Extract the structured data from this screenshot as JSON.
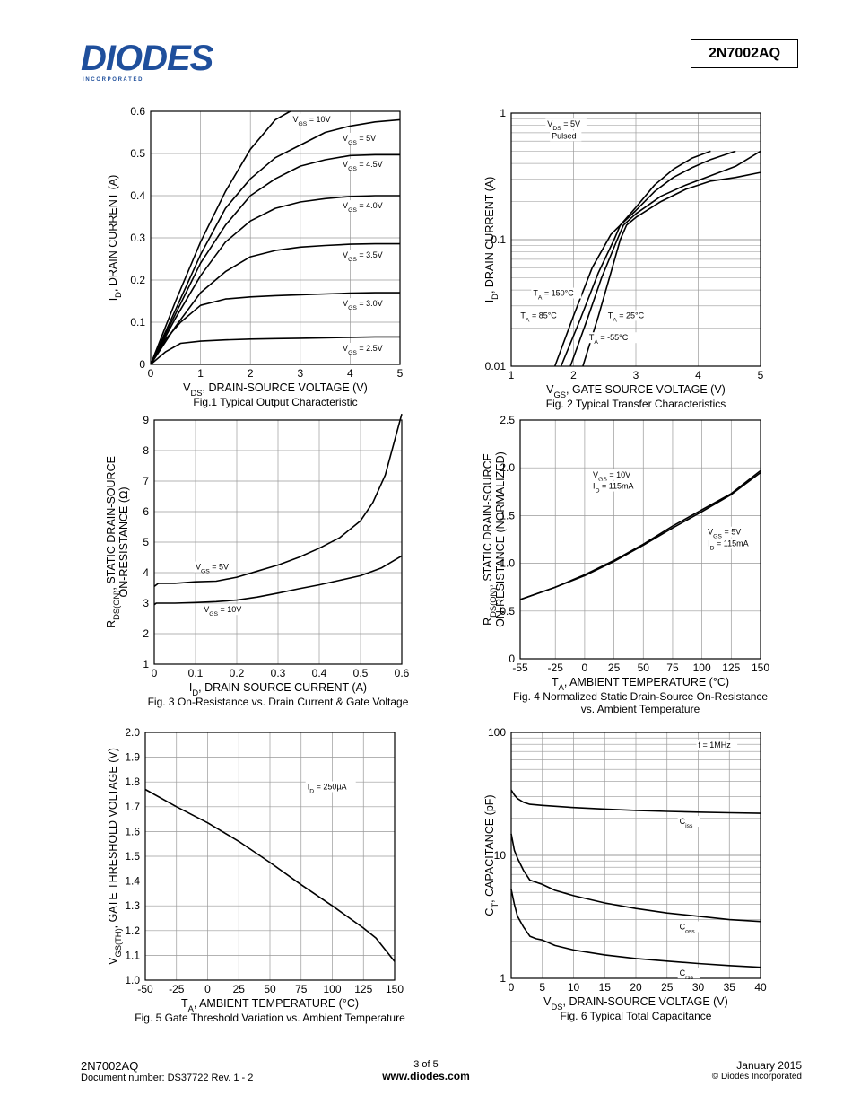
{
  "header": {
    "logo_text": "DIODES",
    "logo_sub": "I N C O R P O R A T E D",
    "part_number": "2N7002AQ",
    "brand_color": "#1f4f9c"
  },
  "footer": {
    "part": "2N7002AQ",
    "doc": "Document number: DS37722 Rev. 1 - 2",
    "page": "3 of 5",
    "url": "www.diodes.com",
    "date": "January 2015",
    "copyright": "© Diodes Incorporated"
  },
  "chart_data": [
    {
      "id": "fig1",
      "type": "line",
      "title": "Fig.1 Typical Output Characteristic",
      "xlabel": "VDS, DRAIN-SOURCE VOLTAGE (V)",
      "ylabel": "ID, DRAIN CURRENT (A)",
      "xlim": [
        0,
        5
      ],
      "ylim": [
        0,
        0.6
      ],
      "xscale": "linear",
      "yscale": "linear",
      "xticks": [
        0,
        1,
        2,
        3,
        4,
        5
      ],
      "yticks": [
        0,
        0.1,
        0.2,
        0.3,
        0.4,
        0.5,
        0.6
      ],
      "xtick_labels": [
        "0",
        "1",
        "2",
        "3",
        "4",
        "5"
      ],
      "ytick_labels": [
        "0",
        "0.1",
        "0.2",
        "0.3",
        "0.4",
        "0.5",
        "0.6"
      ],
      "series": [
        {
          "name": "VGS = 10V",
          "x": [
            0,
            0.5,
            1,
            1.5,
            2,
            2.5,
            2.8
          ],
          "y": [
            0,
            0.15,
            0.29,
            0.41,
            0.51,
            0.58,
            0.6
          ]
        },
        {
          "name": "VGS = 5V",
          "x": [
            0,
            0.5,
            1,
            1.5,
            2,
            2.5,
            3,
            3.5,
            4,
            4.5,
            5
          ],
          "y": [
            0,
            0.13,
            0.26,
            0.37,
            0.44,
            0.49,
            0.52,
            0.55,
            0.565,
            0.575,
            0.58
          ]
        },
        {
          "name": "VGS = 4.5V",
          "x": [
            0,
            0.5,
            1,
            1.5,
            2,
            2.5,
            3,
            3.5,
            4,
            4.5,
            5
          ],
          "y": [
            0,
            0.12,
            0.24,
            0.33,
            0.4,
            0.44,
            0.47,
            0.485,
            0.495,
            0.497,
            0.497
          ]
        },
        {
          "name": "VGS = 4.0V",
          "x": [
            0,
            0.5,
            1,
            1.5,
            2,
            2.5,
            3,
            3.5,
            4,
            4.5,
            5
          ],
          "y": [
            0,
            0.11,
            0.21,
            0.29,
            0.34,
            0.37,
            0.385,
            0.393,
            0.398,
            0.4,
            0.4
          ]
        },
        {
          "name": "VGS = 3.5V",
          "x": [
            0,
            0.5,
            1,
            1.5,
            2,
            2.5,
            3,
            3.5,
            4,
            4.5,
            5
          ],
          "y": [
            0,
            0.09,
            0.17,
            0.22,
            0.255,
            0.27,
            0.278,
            0.282,
            0.285,
            0.286,
            0.286
          ]
        },
        {
          "name": "VGS = 3.0V",
          "x": [
            0,
            0.3,
            0.6,
            1,
            1.5,
            2,
            2.5,
            3,
            3.5,
            4,
            4.5,
            5
          ],
          "y": [
            0,
            0.06,
            0.1,
            0.14,
            0.155,
            0.16,
            0.163,
            0.165,
            0.167,
            0.169,
            0.17,
            0.17
          ]
        },
        {
          "name": "VGS = 2.5V",
          "x": [
            0,
            0.3,
            0.6,
            1,
            1.5,
            2,
            2.5,
            3,
            3.5,
            4,
            4.5,
            5
          ],
          "y": [
            0,
            0.03,
            0.05,
            0.055,
            0.058,
            0.06,
            0.061,
            0.062,
            0.063,
            0.064,
            0.065,
            0.065
          ]
        }
      ],
      "labels": [
        {
          "text": "VGS = 10V",
          "x": 2.85,
          "y": 0.575
        },
        {
          "text": "VGS = 5V",
          "x": 3.85,
          "y": 0.53
        },
        {
          "text": "VGS = 4.5V",
          "x": 3.85,
          "y": 0.468
        },
        {
          "text": "VGS = 4.0V",
          "x": 3.85,
          "y": 0.37
        },
        {
          "text": "VGS = 3.5V",
          "x": 3.85,
          "y": 0.253
        },
        {
          "text": "VGS = 3.0V",
          "x": 3.85,
          "y": 0.138
        },
        {
          "text": "VGS = 2.5V",
          "x": 3.85,
          "y": 0.032
        }
      ]
    },
    {
      "id": "fig2",
      "type": "line",
      "title": "Fig. 2 Typical Transfer Characteristics",
      "xlabel": "VGS, GATE SOURCE VOLTAGE (V)",
      "ylabel": "ID, DRAIN CURRENT (A)",
      "xlim": [
        1,
        5
      ],
      "ylim": [
        0.01,
        1
      ],
      "xscale": "linear",
      "yscale": "log",
      "xticks": [
        1,
        2,
        3,
        4,
        5
      ],
      "yticks": [
        0.01,
        0.1,
        1
      ],
      "xtick_labels": [
        "1",
        "2",
        "3",
        "4",
        "5"
      ],
      "ytick_labels": [
        "0.01",
        "0.1",
        "1"
      ],
      "series": [
        {
          "name": "TA = 150°C",
          "x": [
            1.7,
            2.0,
            2.3,
            2.6,
            2.75,
            3.0,
            3.3,
            3.6,
            3.9,
            4.2
          ],
          "y": [
            0.01,
            0.025,
            0.06,
            0.11,
            0.13,
            0.18,
            0.27,
            0.36,
            0.44,
            0.5
          ]
        },
        {
          "name": "TA = 85°C",
          "x": [
            1.8,
            2.1,
            2.4,
            2.65,
            2.75,
            3.0,
            3.3,
            3.6,
            3.9,
            4.2,
            4.6
          ],
          "y": [
            0.01,
            0.023,
            0.055,
            0.1,
            0.13,
            0.17,
            0.24,
            0.31,
            0.37,
            0.43,
            0.5
          ]
        },
        {
          "name": "TA = 25°C",
          "x": [
            1.95,
            2.2,
            2.45,
            2.7,
            2.8,
            3.0,
            3.4,
            3.8,
            4.2,
            4.6,
            5.0
          ],
          "y": [
            0.01,
            0.022,
            0.05,
            0.1,
            0.13,
            0.16,
            0.22,
            0.27,
            0.32,
            0.38,
            0.5
          ]
        },
        {
          "name": "TA = -55°C",
          "x": [
            2.15,
            2.4,
            2.6,
            2.75,
            2.85,
            3.0,
            3.4,
            3.8,
            4.2,
            4.6,
            5.0
          ],
          "y": [
            0.01,
            0.025,
            0.055,
            0.1,
            0.13,
            0.15,
            0.2,
            0.25,
            0.29,
            0.31,
            0.34
          ]
        }
      ],
      "labels": [
        {
          "text": "VDS = 5V",
          "x": 1.58,
          "y": 0.78
        },
        {
          "text": "Pulsed",
          "x": 1.65,
          "y": 0.63
        },
        {
          "text": "TA = 150°C",
          "x": 1.35,
          "y": 0.036
        },
        {
          "text": "TA = 85°C",
          "x": 1.15,
          "y": 0.024
        },
        {
          "text": "TA = 25°C",
          "x": 2.55,
          "y": 0.024
        },
        {
          "text": "TA = -55°C",
          "x": 2.25,
          "y": 0.016
        }
      ]
    },
    {
      "id": "fig3",
      "type": "line",
      "title": "Fig. 3  On-Resistance  vs. Drain Current & Gate Voltage",
      "xlabel": "ID, DRAIN-SOURCE CURRENT (A)",
      "ylabel": "RDS(ON), STATIC DRAIN-SOURCE ON-RESISTANCE (Ω)",
      "xlim": [
        0,
        0.6
      ],
      "ylim": [
        1,
        9
      ],
      "xscale": "linear",
      "yscale": "linear",
      "xticks": [
        0,
        0.1,
        0.2,
        0.3,
        0.4,
        0.5,
        0.6
      ],
      "yticks": [
        1,
        2,
        3,
        4,
        5,
        6,
        7,
        8,
        9
      ],
      "xtick_labels": [
        "0",
        "0.1",
        "0.2",
        "0.3",
        "0.4",
        "0.5",
        "0.6"
      ],
      "ytick_labels": [
        "1",
        "2",
        "3",
        "4",
        "5",
        "6",
        "7",
        "8",
        "9"
      ],
      "series": [
        {
          "name": "VGS = 5V",
          "x": [
            0,
            0.005,
            0.01,
            0.05,
            0.1,
            0.15,
            0.2,
            0.25,
            0.3,
            0.35,
            0.4,
            0.45,
            0.5,
            0.53,
            0.56,
            0.58,
            0.6
          ],
          "y": [
            3.55,
            3.6,
            3.65,
            3.65,
            3.7,
            3.72,
            3.85,
            4.05,
            4.25,
            4.5,
            4.8,
            5.15,
            5.7,
            6.3,
            7.2,
            8.2,
            9.2
          ]
        },
        {
          "name": "VGS = 10V",
          "x": [
            0,
            0.005,
            0.01,
            0.05,
            0.1,
            0.15,
            0.2,
            0.25,
            0.3,
            0.35,
            0.4,
            0.45,
            0.5,
            0.55,
            0.6
          ],
          "y": [
            2.95,
            3.0,
            3.0,
            3.0,
            3.02,
            3.05,
            3.1,
            3.2,
            3.33,
            3.47,
            3.6,
            3.75,
            3.9,
            4.15,
            4.55
          ]
        }
      ],
      "labels": [
        {
          "text": "VGS = 5V",
          "x": 0.1,
          "y": 4.1
        },
        {
          "text": "VGS = 10V",
          "x": 0.12,
          "y": 2.7
        }
      ]
    },
    {
      "id": "fig4",
      "type": "line",
      "title": "Fig. 4 Normalized Static Drain-Source On-Resistance",
      "title2": "vs. Ambient Temperature",
      "xlabel": "TA, AMBIENT TEMPERATURE (°C)",
      "ylabel": "RDS(ON), STATIC DRAIN-SOURCE ON-RESISTANCE (NORMALIZED)",
      "xlim": [
        -55,
        150
      ],
      "ylim": [
        0,
        2.5
      ],
      "xscale": "linear",
      "yscale": "linear",
      "xticks": [
        -55,
        -25,
        0,
        25,
        50,
        75,
        100,
        125,
        150
      ],
      "yticks": [
        0,
        0.5,
        1.0,
        1.5,
        2.0,
        2.5
      ],
      "xtick_labels": [
        "-55",
        "-25",
        "0",
        "25",
        "50",
        "75",
        "100",
        "125",
        "150"
      ],
      "ytick_labels": [
        "0",
        "0.5",
        "1.0",
        "1.5",
        "2.0",
        "2.5"
      ],
      "series": [
        {
          "name": "VGS = 10V, ID = 115mA",
          "x": [
            -55,
            -25,
            0,
            25,
            50,
            75,
            100,
            125,
            150
          ],
          "y": [
            0.62,
            0.75,
            0.88,
            1.03,
            1.2,
            1.39,
            1.56,
            1.73,
            1.97
          ]
        },
        {
          "name": "VGS = 5V, ID = 115mA",
          "x": [
            -55,
            -25,
            0,
            25,
            50,
            75,
            100,
            125,
            150
          ],
          "y": [
            0.62,
            0.75,
            0.87,
            1.02,
            1.19,
            1.37,
            1.54,
            1.72,
            1.95
          ]
        }
      ],
      "labels": [
        {
          "text": "VGS = 10V",
          "x": 7,
          "y": 1.9
        },
        {
          "text": "ID = 115mA",
          "x": 7,
          "y": 1.78
        },
        {
          "text": "VGS = 5V",
          "x": 105,
          "y": 1.3
        },
        {
          "text": "ID = 115mA",
          "x": 105,
          "y": 1.18
        }
      ]
    },
    {
      "id": "fig5",
      "type": "line",
      "title": "Fig. 5 Gate Threshold Variation vs. Ambient Temperature",
      "xlabel": "TA, AMBIENT TEMPERATURE (°C)",
      "ylabel": "VGS(TH), GATE THRESHOLD VOLTAGE (V)",
      "xlim": [
        -50,
        150
      ],
      "ylim": [
        1.0,
        2.0
      ],
      "xscale": "linear",
      "yscale": "linear",
      "xticks": [
        -50,
        -25,
        0,
        25,
        50,
        75,
        100,
        125,
        150
      ],
      "yticks": [
        1.0,
        1.1,
        1.2,
        1.3,
        1.4,
        1.5,
        1.6,
        1.7,
        1.8,
        1.9,
        2.0
      ],
      "xtick_labels": [
        "-50",
        "-25",
        "0",
        "25",
        "50",
        "75",
        "100",
        "125",
        "150"
      ],
      "ytick_labels": [
        "1.0",
        "1.1",
        "1.2",
        "1.3",
        "1.4",
        "1.5",
        "1.6",
        "1.7",
        "1.8",
        "1.9",
        "2.0"
      ],
      "series": [
        {
          "name": "ID = 250µA",
          "x": [
            -50,
            -25,
            0,
            25,
            50,
            75,
            100,
            125,
            135,
            150
          ],
          "y": [
            1.77,
            1.7,
            1.635,
            1.56,
            1.475,
            1.385,
            1.3,
            1.21,
            1.17,
            1.075
          ]
        }
      ],
      "labels": [
        {
          "text": "ID = 250µA",
          "x": 80,
          "y": 1.77
        }
      ]
    },
    {
      "id": "fig6",
      "type": "line",
      "title": "Fig. 6  Typical Total Capacitance",
      "xlabel": "VDS, DRAIN-SOURCE VOLTAGE (V)",
      "ylabel": "CT, CAPACITANCE (pF)",
      "xlim": [
        0,
        40
      ],
      "ylim": [
        1,
        100
      ],
      "xscale": "linear",
      "yscale": "log",
      "xticks": [
        0,
        5,
        10,
        15,
        20,
        25,
        30,
        35,
        40
      ],
      "yticks": [
        1,
        10,
        100
      ],
      "xtick_labels": [
        "0",
        "5",
        "10",
        "15",
        "20",
        "25",
        "30",
        "35",
        "40"
      ],
      "ytick_labels": [
        "1",
        "10",
        "100"
      ],
      "series": [
        {
          "name": "Ciss",
          "x": [
            0,
            0.5,
            1,
            2,
            3,
            5,
            10,
            15,
            20,
            25,
            30,
            35,
            40
          ],
          "y": [
            34,
            31,
            29,
            27,
            26,
            25.5,
            24.5,
            23.8,
            23.2,
            22.8,
            22.5,
            22.2,
            22
          ]
        },
        {
          "name": "Coss",
          "x": [
            0,
            0.5,
            1,
            2,
            3,
            5,
            7,
            10,
            15,
            20,
            25,
            30,
            35,
            40
          ],
          "y": [
            15,
            11,
            9.5,
            7.5,
            6.3,
            5.8,
            5.2,
            4.7,
            4.1,
            3.7,
            3.4,
            3.2,
            3.0,
            2.9
          ]
        },
        {
          "name": "Crss",
          "x": [
            0,
            0.5,
            1,
            2,
            3,
            4,
            5,
            7,
            10,
            15,
            20,
            25,
            30,
            35,
            40
          ],
          "y": [
            5.3,
            4,
            3.2,
            2.6,
            2.2,
            2.1,
            2.05,
            1.85,
            1.7,
            1.55,
            1.45,
            1.38,
            1.32,
            1.27,
            1.23
          ]
        }
      ],
      "labels": [
        {
          "text": "f = 1MHz",
          "x": 30,
          "y": 75
        },
        {
          "text": "Ciss",
          "x": 27,
          "y": 18
        },
        {
          "text": "Coss",
          "x": 27,
          "y": 2.5
        },
        {
          "text": "Crss",
          "x": 27,
          "y": 1.05
        }
      ]
    }
  ]
}
